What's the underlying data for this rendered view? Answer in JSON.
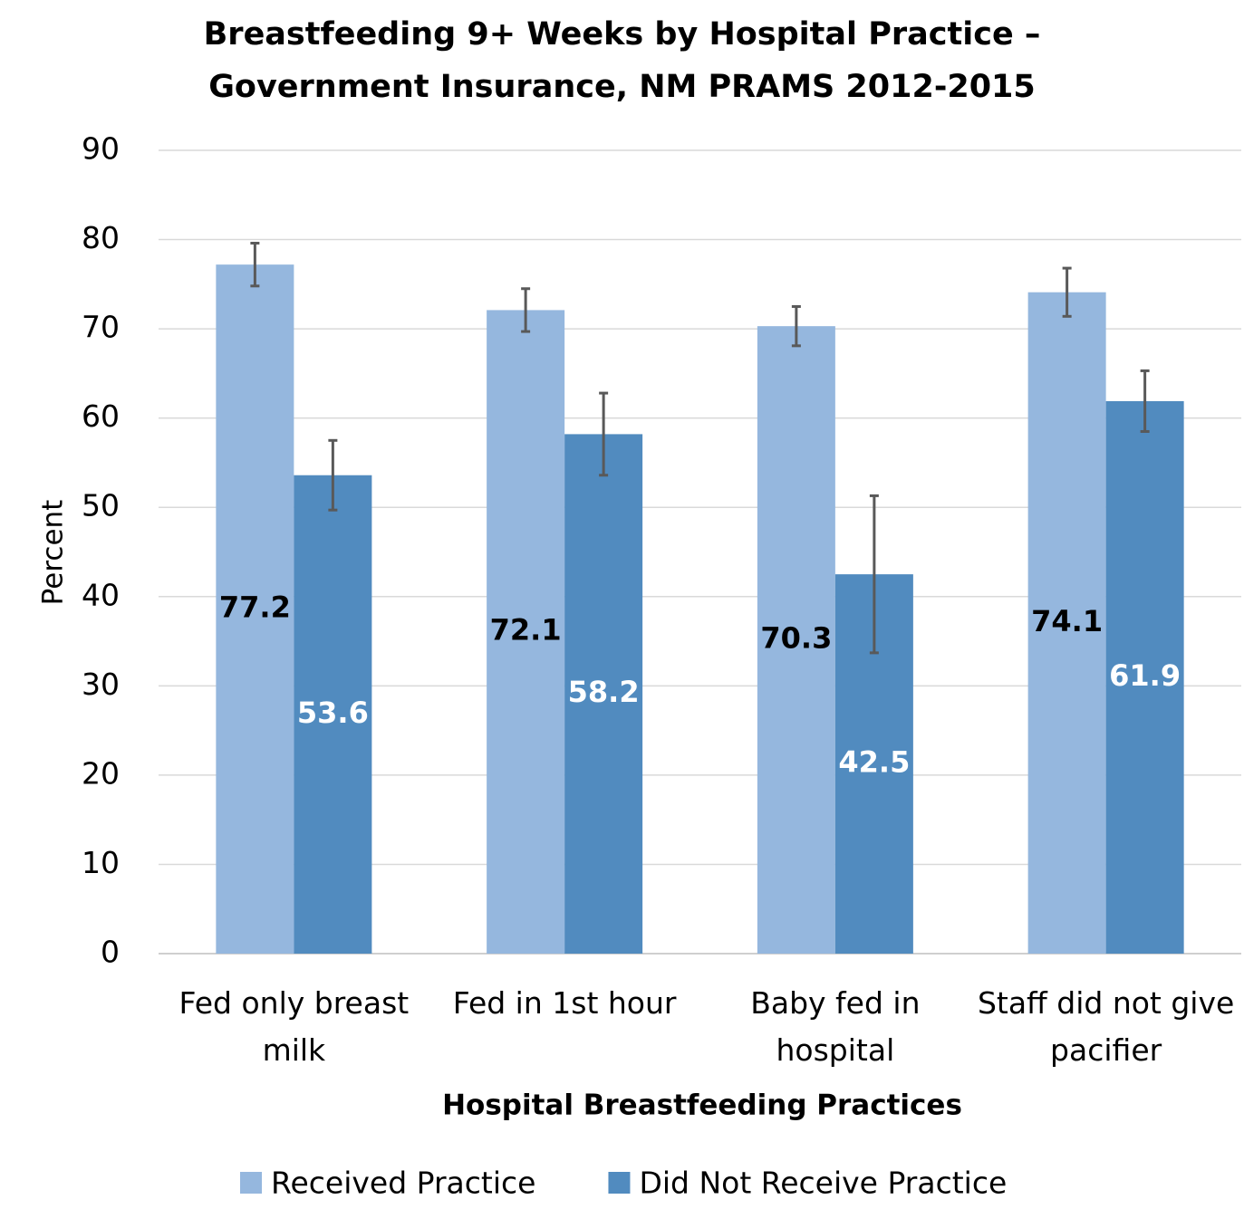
{
  "chart_data": {
    "type": "bar",
    "title": [
      "Breastfeeding 9+ Weeks by Hospital Practice  –",
      "Government Insurance, NM PRAMS 2012-2015"
    ],
    "x_label": "Hospital Breastfeeding Practices",
    "y_label": "Percent",
    "categories": [
      "Fed only breast milk",
      "Fed in 1st hour",
      "Baby fed in hospital",
      "Staff did not give pacifier"
    ],
    "series": [
      {
        "name": "Received Practice",
        "color": "#95b7de",
        "label_color": "#000000",
        "values": [
          77.2,
          72.1,
          70.3,
          74.1
        ],
        "errors": [
          2.4,
          2.4,
          2.2,
          2.7
        ]
      },
      {
        "name": "Did Not Receive Practice",
        "color": "#518bbf",
        "label_color": "#ffffff",
        "values": [
          53.6,
          58.2,
          42.5,
          61.9
        ],
        "errors": [
          3.9,
          4.6,
          8.8,
          3.4
        ]
      }
    ],
    "ylim": [
      0,
      90
    ],
    "yticks": [
      0,
      10,
      20,
      30,
      40,
      50,
      60,
      70,
      80,
      90
    ],
    "grid": true,
    "legend": "bottom"
  }
}
